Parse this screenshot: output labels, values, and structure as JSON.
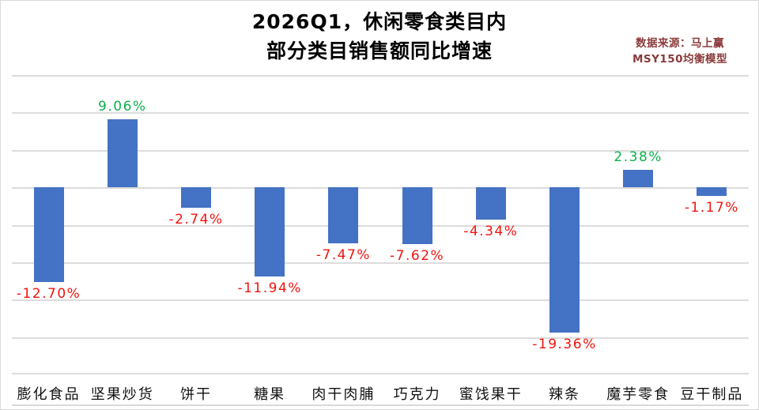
{
  "page": {
    "background": "#ffffff",
    "border_color": "#d9d9d9"
  },
  "header": {
    "title_line1": "2026Q1，休闲零食类目内",
    "title_line2": "部分类目销售额同比增速",
    "source_line1": "数据来源：马上赢",
    "source_line2": "MSY150均衡模型",
    "source_color": "#8b3a3a"
  },
  "chart_data": {
    "type": "bar",
    "title": "2026Q1，休闲零食类目内部分类目销售额同比增速",
    "categories": [
      "膨化食品",
      "坚果炒货",
      "饼干",
      "糖果",
      "肉干肉脯",
      "巧克力",
      "蜜饯果干",
      "辣条",
      "魔芋零食",
      "豆干制品"
    ],
    "values": [
      -12.7,
      9.06,
      -2.74,
      -11.94,
      -7.47,
      -7.62,
      -4.34,
      -19.36,
      2.38,
      -1.17
    ],
    "value_labels": [
      "-12.70%",
      "9.06%",
      "-2.74%",
      "-11.94%",
      "-7.47%",
      "-7.62%",
      "-4.34%",
      "-19.36%",
      "2.38%",
      "-1.17%"
    ],
    "xlabel": "",
    "ylabel": "",
    "ylim": [
      -25,
      15
    ],
    "grid_step": 5,
    "grid": true,
    "legend": "none",
    "bar_color": "#4472c4",
    "positive_label_color": "#0db14c",
    "negative_label_color": "#f2140f",
    "gridline_color": "#dcdcdc"
  }
}
